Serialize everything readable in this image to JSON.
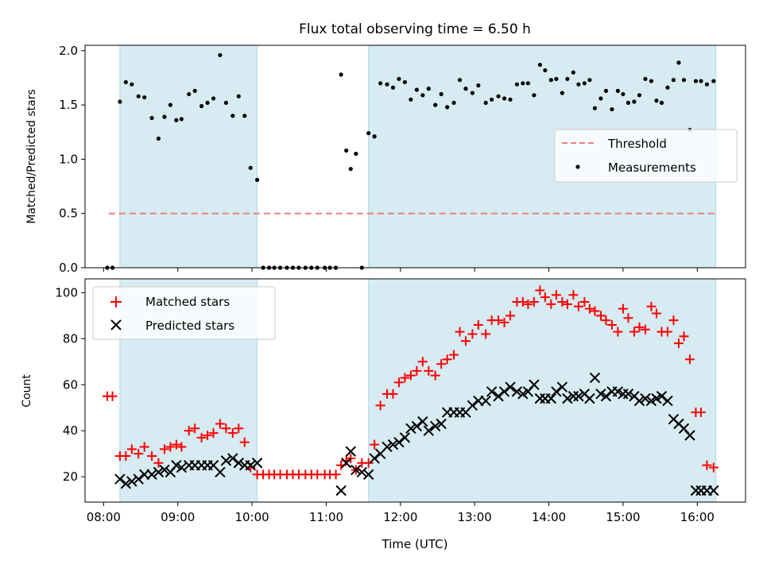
{
  "chart_data": [
    {
      "type": "scatter",
      "title": "Flux total observing time = 6.50 h",
      "xlabel": "",
      "ylabel": "Matched/Predicted stars",
      "xlim": [
        7.75,
        16.65
      ],
      "ylim": [
        0,
        2.05
      ],
      "yticks": [
        0.0,
        0.5,
        1.0,
        1.5,
        2.0
      ],
      "ytick_labels": [
        "0.0",
        "0.5",
        "1.0",
        "1.5",
        "2.0"
      ],
      "xticks": [
        8,
        9,
        10,
        11,
        12,
        13,
        14,
        15,
        16
      ],
      "shaded_intervals": [
        [
          8.22,
          10.07
        ],
        [
          11.57,
          16.25
        ]
      ],
      "threshold": {
        "name": "Threshold",
        "value": 0.5,
        "x_range": [
          8.07,
          16.25
        ],
        "color": "#f08080"
      },
      "legend": {
        "placement": "right",
        "entries": [
          "Threshold",
          "Measurements"
        ]
      },
      "series": [
        {
          "name": "Measurements",
          "color": "#000000",
          "x": [
            8.05,
            8.12,
            8.22,
            8.3,
            8.38,
            8.47,
            8.55,
            8.65,
            8.74,
            8.82,
            8.9,
            8.98,
            9.05,
            9.15,
            9.23,
            9.32,
            9.4,
            9.48,
            9.57,
            9.65,
            9.74,
            9.82,
            9.9,
            9.98,
            10.07,
            10.15,
            10.23,
            10.3,
            10.38,
            10.47,
            10.55,
            10.63,
            10.72,
            10.8,
            10.88,
            10.98,
            11.05,
            11.13,
            11.2,
            11.27,
            11.33,
            11.4,
            11.48,
            11.57,
            11.65,
            11.73,
            11.82,
            11.9,
            11.98,
            12.06,
            12.14,
            12.22,
            12.3,
            12.38,
            12.47,
            12.55,
            12.63,
            12.72,
            12.8,
            12.88,
            12.97,
            13.05,
            13.15,
            13.23,
            13.32,
            13.4,
            13.48,
            13.57,
            13.65,
            13.72,
            13.8,
            13.88,
            13.95,
            14.03,
            14.1,
            14.18,
            14.25,
            14.33,
            14.4,
            14.48,
            14.55,
            14.62,
            14.7,
            14.77,
            14.85,
            14.93,
            15.0,
            15.07,
            15.15,
            15.22,
            15.3,
            15.38,
            15.45,
            15.52,
            15.6,
            15.68,
            15.75,
            15.82,
            15.9,
            15.98,
            16.05,
            16.13,
            16.22
          ],
          "y": [
            0.0,
            0.0,
            1.53,
            1.71,
            1.69,
            1.58,
            1.57,
            1.38,
            1.19,
            1.39,
            1.5,
            1.36,
            1.37,
            1.6,
            1.63,
            1.49,
            1.52,
            1.56,
            1.96,
            1.52,
            1.4,
            1.58,
            1.4,
            0.92,
            0.81,
            0.0,
            0.0,
            0.0,
            0.0,
            0.0,
            0.0,
            0.0,
            0.0,
            0.0,
            0.0,
            0.0,
            0.0,
            0.0,
            1.78,
            1.08,
            0.91,
            1.05,
            0.0,
            1.24,
            1.21,
            1.7,
            1.69,
            1.66,
            1.74,
            1.71,
            1.55,
            1.64,
            1.59,
            1.65,
            1.5,
            1.6,
            1.48,
            1.52,
            1.73,
            1.65,
            1.61,
            1.68,
            1.52,
            1.55,
            1.58,
            1.56,
            1.55,
            1.69,
            1.7,
            1.7,
            1.59,
            1.87,
            1.82,
            1.73,
            1.74,
            1.61,
            1.74,
            1.8,
            1.69,
            1.7,
            1.73,
            1.47,
            1.56,
            1.63,
            1.46,
            1.63,
            1.6,
            1.52,
            1.53,
            1.59,
            1.74,
            1.72,
            1.54,
            1.52,
            1.66,
            1.73,
            1.89,
            1.73,
            1.27,
            1.72,
            1.72,
            1.69,
            1.72
          ]
        }
      ]
    },
    {
      "type": "scatter",
      "title": "",
      "xlabel": "Time (UTC)",
      "ylabel": "Count",
      "xlim": [
        7.75,
        16.65
      ],
      "ylim": [
        9,
        106
      ],
      "yticks": [
        20,
        40,
        60,
        80,
        100
      ],
      "ytick_labels": [
        "20",
        "40",
        "60",
        "80",
        "100"
      ],
      "xticks": [
        8,
        9,
        10,
        11,
        12,
        13,
        14,
        15,
        16
      ],
      "xtick_labels": [
        "08:00",
        "09:00",
        "10:00",
        "11:00",
        "12:00",
        "13:00",
        "14:00",
        "15:00",
        "16:00"
      ],
      "shaded_intervals": [
        [
          8.22,
          10.07
        ],
        [
          11.57,
          16.25
        ]
      ],
      "legend": {
        "placement": "top-left",
        "entries": [
          "Matched stars",
          "Predicted stars"
        ]
      },
      "series": [
        {
          "name": "Matched stars",
          "marker": "+",
          "color": "#ff0000",
          "x": [
            8.05,
            8.12,
            8.22,
            8.3,
            8.38,
            8.47,
            8.55,
            8.65,
            8.74,
            8.82,
            8.9,
            8.98,
            9.05,
            9.15,
            9.23,
            9.32,
            9.4,
            9.48,
            9.57,
            9.65,
            9.74,
            9.82,
            9.9,
            9.98,
            10.07,
            10.15,
            10.23,
            10.3,
            10.38,
            10.47,
            10.55,
            10.63,
            10.72,
            10.8,
            10.88,
            10.98,
            11.05,
            11.13,
            11.2,
            11.27,
            11.33,
            11.4,
            11.48,
            11.57,
            11.65,
            11.73,
            11.82,
            11.9,
            11.98,
            12.06,
            12.14,
            12.22,
            12.3,
            12.38,
            12.47,
            12.55,
            12.63,
            12.72,
            12.8,
            12.88,
            12.97,
            13.05,
            13.15,
            13.23,
            13.32,
            13.4,
            13.48,
            13.57,
            13.65,
            13.72,
            13.8,
            13.88,
            13.95,
            14.03,
            14.1,
            14.18,
            14.25,
            14.33,
            14.4,
            14.48,
            14.55,
            14.62,
            14.7,
            14.77,
            14.85,
            14.93,
            15.0,
            15.07,
            15.15,
            15.22,
            15.3,
            15.38,
            15.45,
            15.52,
            15.6,
            15.68,
            15.75,
            15.82,
            15.9,
            15.98,
            16.05,
            16.13,
            16.22
          ],
          "y": [
            55,
            55,
            29,
            29,
            32,
            30,
            33,
            29,
            26,
            32,
            33,
            34,
            33,
            40,
            41,
            37,
            38,
            39,
            43,
            41,
            39,
            41,
            35,
            24,
            21,
            21,
            21,
            21,
            21,
            21,
            21,
            21,
            21,
            21,
            21,
            21,
            21,
            21,
            25,
            27,
            28,
            23,
            26,
            26,
            34,
            51,
            56,
            56,
            61,
            63,
            64,
            66,
            70,
            66,
            64,
            69,
            71,
            73,
            83,
            79,
            82,
            86,
            82,
            88,
            88,
            87,
            90,
            96,
            96,
            95,
            96,
            101,
            98,
            95,
            99,
            96,
            95,
            99,
            94,
            96,
            93,
            92,
            90,
            88,
            86,
            83,
            93,
            89,
            83,
            85,
            84,
            94,
            91,
            83,
            83,
            88,
            78,
            81,
            71,
            48,
            48,
            25,
            24
          ]
        },
        {
          "name": "Predicted stars",
          "marker": "x",
          "color": "#000000",
          "x": [
            8.22,
            8.3,
            8.38,
            8.47,
            8.55,
            8.65,
            8.74,
            8.82,
            8.9,
            8.98,
            9.05,
            9.15,
            9.23,
            9.32,
            9.4,
            9.48,
            9.57,
            9.65,
            9.74,
            9.82,
            9.9,
            9.98,
            10.07,
            11.2,
            11.27,
            11.33,
            11.4,
            11.48,
            11.57,
            11.65,
            11.73,
            11.82,
            11.9,
            11.98,
            12.06,
            12.14,
            12.22,
            12.3,
            12.38,
            12.47,
            12.55,
            12.63,
            12.72,
            12.8,
            12.88,
            12.97,
            13.05,
            13.15,
            13.23,
            13.32,
            13.4,
            13.48,
            13.57,
            13.65,
            13.72,
            13.8,
            13.88,
            13.95,
            14.03,
            14.1,
            14.18,
            14.25,
            14.33,
            14.4,
            14.48,
            14.55,
            14.62,
            14.7,
            14.77,
            14.85,
            14.93,
            15.0,
            15.07,
            15.15,
            15.22,
            15.3,
            15.38,
            15.45,
            15.52,
            15.6,
            15.68,
            15.75,
            15.82,
            15.9,
            15.98,
            16.05,
            16.13,
            16.22
          ],
          "y": [
            19,
            17,
            18,
            19,
            21,
            21,
            22,
            23,
            22,
            25,
            24,
            25,
            25,
            25,
            25,
            25,
            22,
            27,
            28,
            26,
            25,
            25,
            26,
            14,
            26,
            31,
            23,
            22,
            21,
            28,
            30,
            33,
            34,
            35,
            37,
            41,
            42,
            44,
            40,
            42,
            43,
            48,
            48,
            48,
            48,
            51,
            53,
            53,
            57,
            55,
            57,
            59,
            57,
            56,
            57,
            60,
            54,
            54,
            54,
            57,
            59,
            54,
            55,
            55,
            56,
            54,
            63,
            56,
            55,
            57,
            57,
            56,
            56,
            55,
            53,
            54,
            53,
            54,
            55,
            53,
            45,
            43,
            41,
            38,
            14,
            14,
            14,
            14
          ]
        }
      ]
    }
  ]
}
